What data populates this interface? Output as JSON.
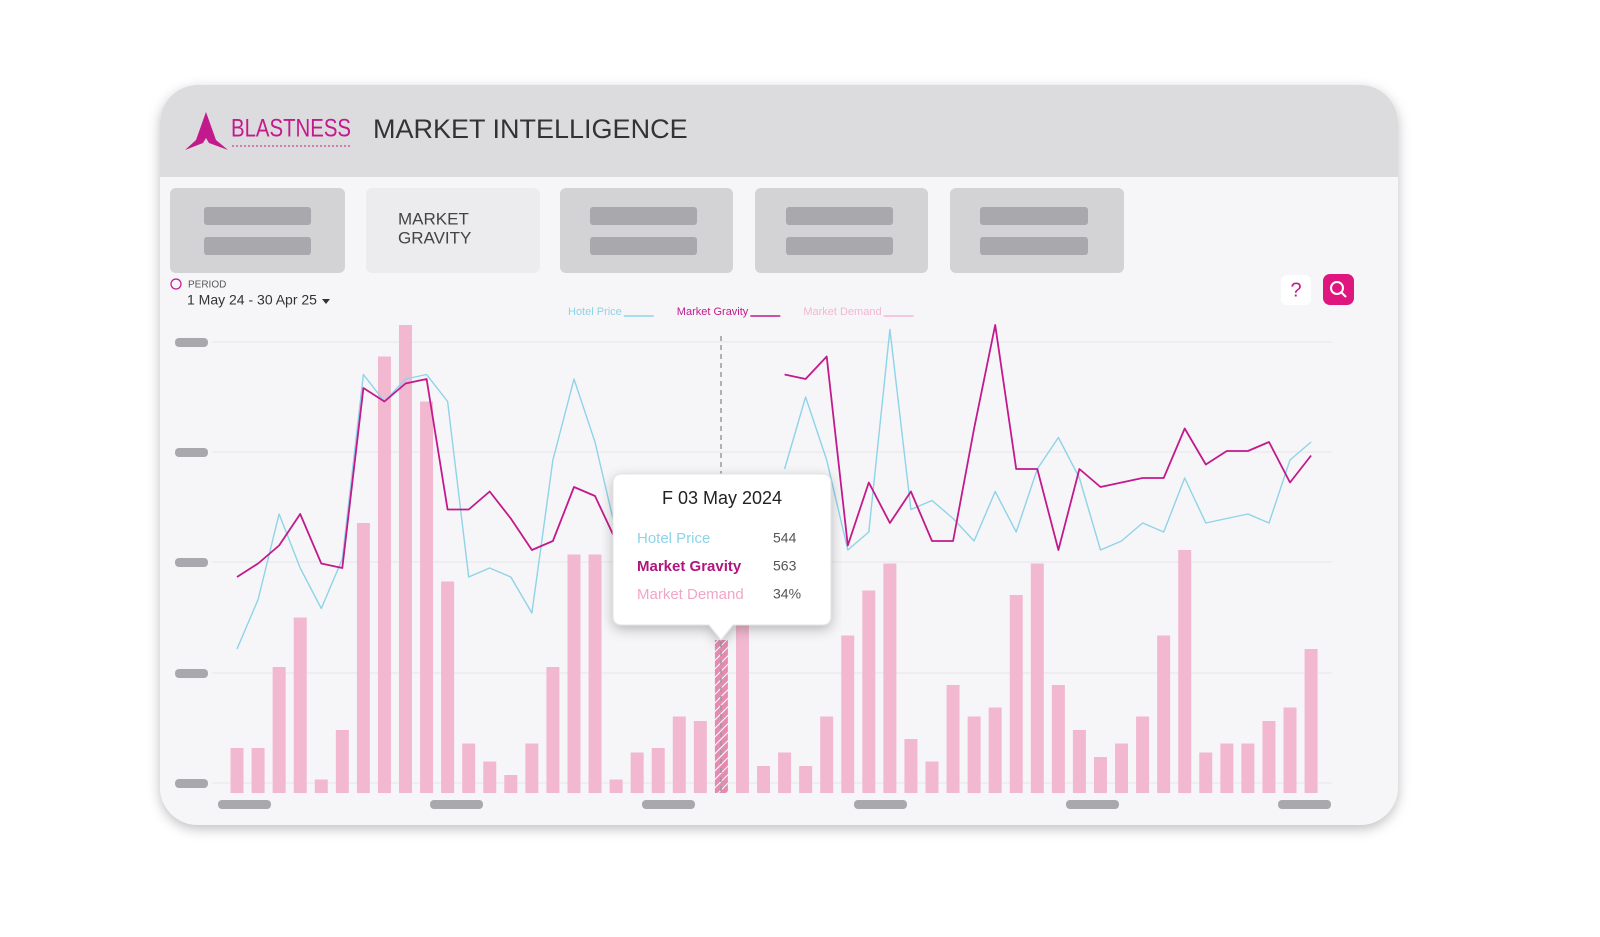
{
  "header": {
    "brand": "BLASTNESS",
    "title": "MARKET INTELLIGENCE"
  },
  "tabs": [
    {
      "label_lines": [
        "MARKET",
        "GRAVITY"
      ]
    }
  ],
  "period": {
    "label": "PERIOD",
    "value": "1 May 24 - 30 Apr 25"
  },
  "icons": {
    "help": "?"
  },
  "tooltip": {
    "title": "F 03 May 2024",
    "rows": [
      {
        "name": "Hotel Price",
        "value": "544"
      },
      {
        "name": "Market Gravity",
        "value": "563"
      },
      {
        "name": "Market Demand",
        "value": "34%"
      }
    ]
  },
  "chart_data": {
    "type": "combo",
    "categories": [
      null,
      null,
      null,
      null,
      null,
      null,
      null,
      null,
      null,
      null,
      null,
      null,
      null,
      null,
      null,
      null,
      null,
      null,
      null,
      null,
      null,
      null,
      null,
      null,
      null,
      null,
      null,
      null,
      null,
      null,
      null,
      null,
      null,
      null,
      null,
      null,
      null,
      null,
      null,
      null,
      null,
      null,
      null,
      null,
      null,
      null,
      null,
      null,
      null,
      null,
      null,
      null
    ],
    "ylim": [
      0,
      110
    ],
    "series": [
      {
        "name": "Hotel Price",
        "type": "line",
        "color": "#8fd3e8",
        "values": [
          32,
          43,
          62,
          50,
          41,
          52,
          93,
          87,
          92,
          93,
          87,
          48,
          50,
          48,
          40,
          74,
          92,
          78,
          58,
          null,
          null,
          null,
          null,
          null,
          null,
          null,
          72,
          88,
          74,
          54,
          58,
          103,
          63,
          65,
          61,
          56,
          67,
          58,
          72,
          79,
          70,
          54,
          56,
          60,
          58,
          70,
          60,
          61,
          62,
          60,
          74,
          78
        ]
      },
      {
        "name": "Market Gravity",
        "type": "line",
        "color": "#c21a8c",
        "values": [
          48,
          51,
          55,
          62,
          51,
          50,
          90,
          87,
          91,
          92,
          63,
          63,
          67,
          61,
          54,
          56,
          68,
          66,
          56,
          null,
          null,
          null,
          null,
          null,
          null,
          null,
          93,
          92,
          97,
          55,
          69,
          60,
          67,
          56,
          56,
          81,
          104,
          72,
          72,
          54,
          72,
          68,
          69,
          70,
          70,
          81,
          73,
          76,
          76,
          78,
          69,
          75
        ]
      },
      {
        "name": "Market Demand",
        "type": "bar",
        "color": "#f2b8cf",
        "values": [
          10,
          10,
          28,
          39,
          3,
          14,
          60,
          97,
          104,
          87,
          47,
          11,
          7,
          4,
          11,
          28,
          53,
          53,
          3,
          9,
          10,
          17,
          16,
          34,
          38,
          6,
          9,
          6,
          17,
          35,
          45,
          51,
          12,
          7,
          24,
          17,
          19,
          44,
          51,
          24,
          14,
          8,
          11,
          17,
          35,
          54,
          9,
          11,
          11,
          16,
          19,
          32
        ]
      }
    ]
  }
}
